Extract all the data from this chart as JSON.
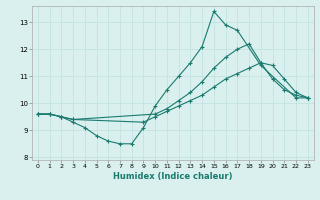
{
  "xlabel": "Humidex (Indice chaleur)",
  "ylabel": "",
  "background_color": "#d9f0ef",
  "line_color": "#1a7a6e",
  "xlim": [
    -0.5,
    23.5
  ],
  "ylim": [
    7.9,
    13.6
  ],
  "yticks": [
    8,
    9,
    10,
    11,
    12,
    13
  ],
  "xticks": [
    0,
    1,
    2,
    3,
    4,
    5,
    6,
    7,
    8,
    9,
    10,
    11,
    12,
    13,
    14,
    15,
    16,
    17,
    18,
    19,
    20,
    21,
    22,
    23
  ],
  "lines": [
    {
      "x": [
        0,
        1,
        2,
        3,
        4,
        5,
        6,
        7,
        8,
        9,
        10,
        11,
        12,
        13,
        14,
        15,
        16,
        17,
        19,
        22,
        23
      ],
      "y": [
        9.6,
        9.6,
        9.5,
        9.3,
        9.1,
        8.8,
        8.6,
        8.5,
        8.5,
        9.1,
        9.9,
        10.5,
        11.0,
        11.5,
        12.1,
        13.4,
        12.9,
        12.7,
        11.4,
        10.2,
        10.2
      ]
    },
    {
      "x": [
        0,
        1,
        2,
        3,
        10,
        11,
        12,
        13,
        14,
        15,
        16,
        17,
        18,
        19,
        20,
        21,
        22,
        23
      ],
      "y": [
        9.6,
        9.6,
        9.5,
        9.4,
        9.6,
        9.8,
        10.1,
        10.4,
        10.8,
        11.3,
        11.7,
        12.0,
        12.2,
        11.5,
        10.9,
        10.5,
        10.3,
        10.2
      ]
    },
    {
      "x": [
        0,
        1,
        2,
        3,
        9,
        10,
        11,
        12,
        13,
        14,
        15,
        16,
        17,
        18,
        19,
        20,
        21,
        22,
        23
      ],
      "y": [
        9.6,
        9.6,
        9.5,
        9.4,
        9.3,
        9.5,
        9.7,
        9.9,
        10.1,
        10.3,
        10.6,
        10.9,
        11.1,
        11.3,
        11.5,
        11.4,
        10.9,
        10.4,
        10.2
      ]
    }
  ]
}
